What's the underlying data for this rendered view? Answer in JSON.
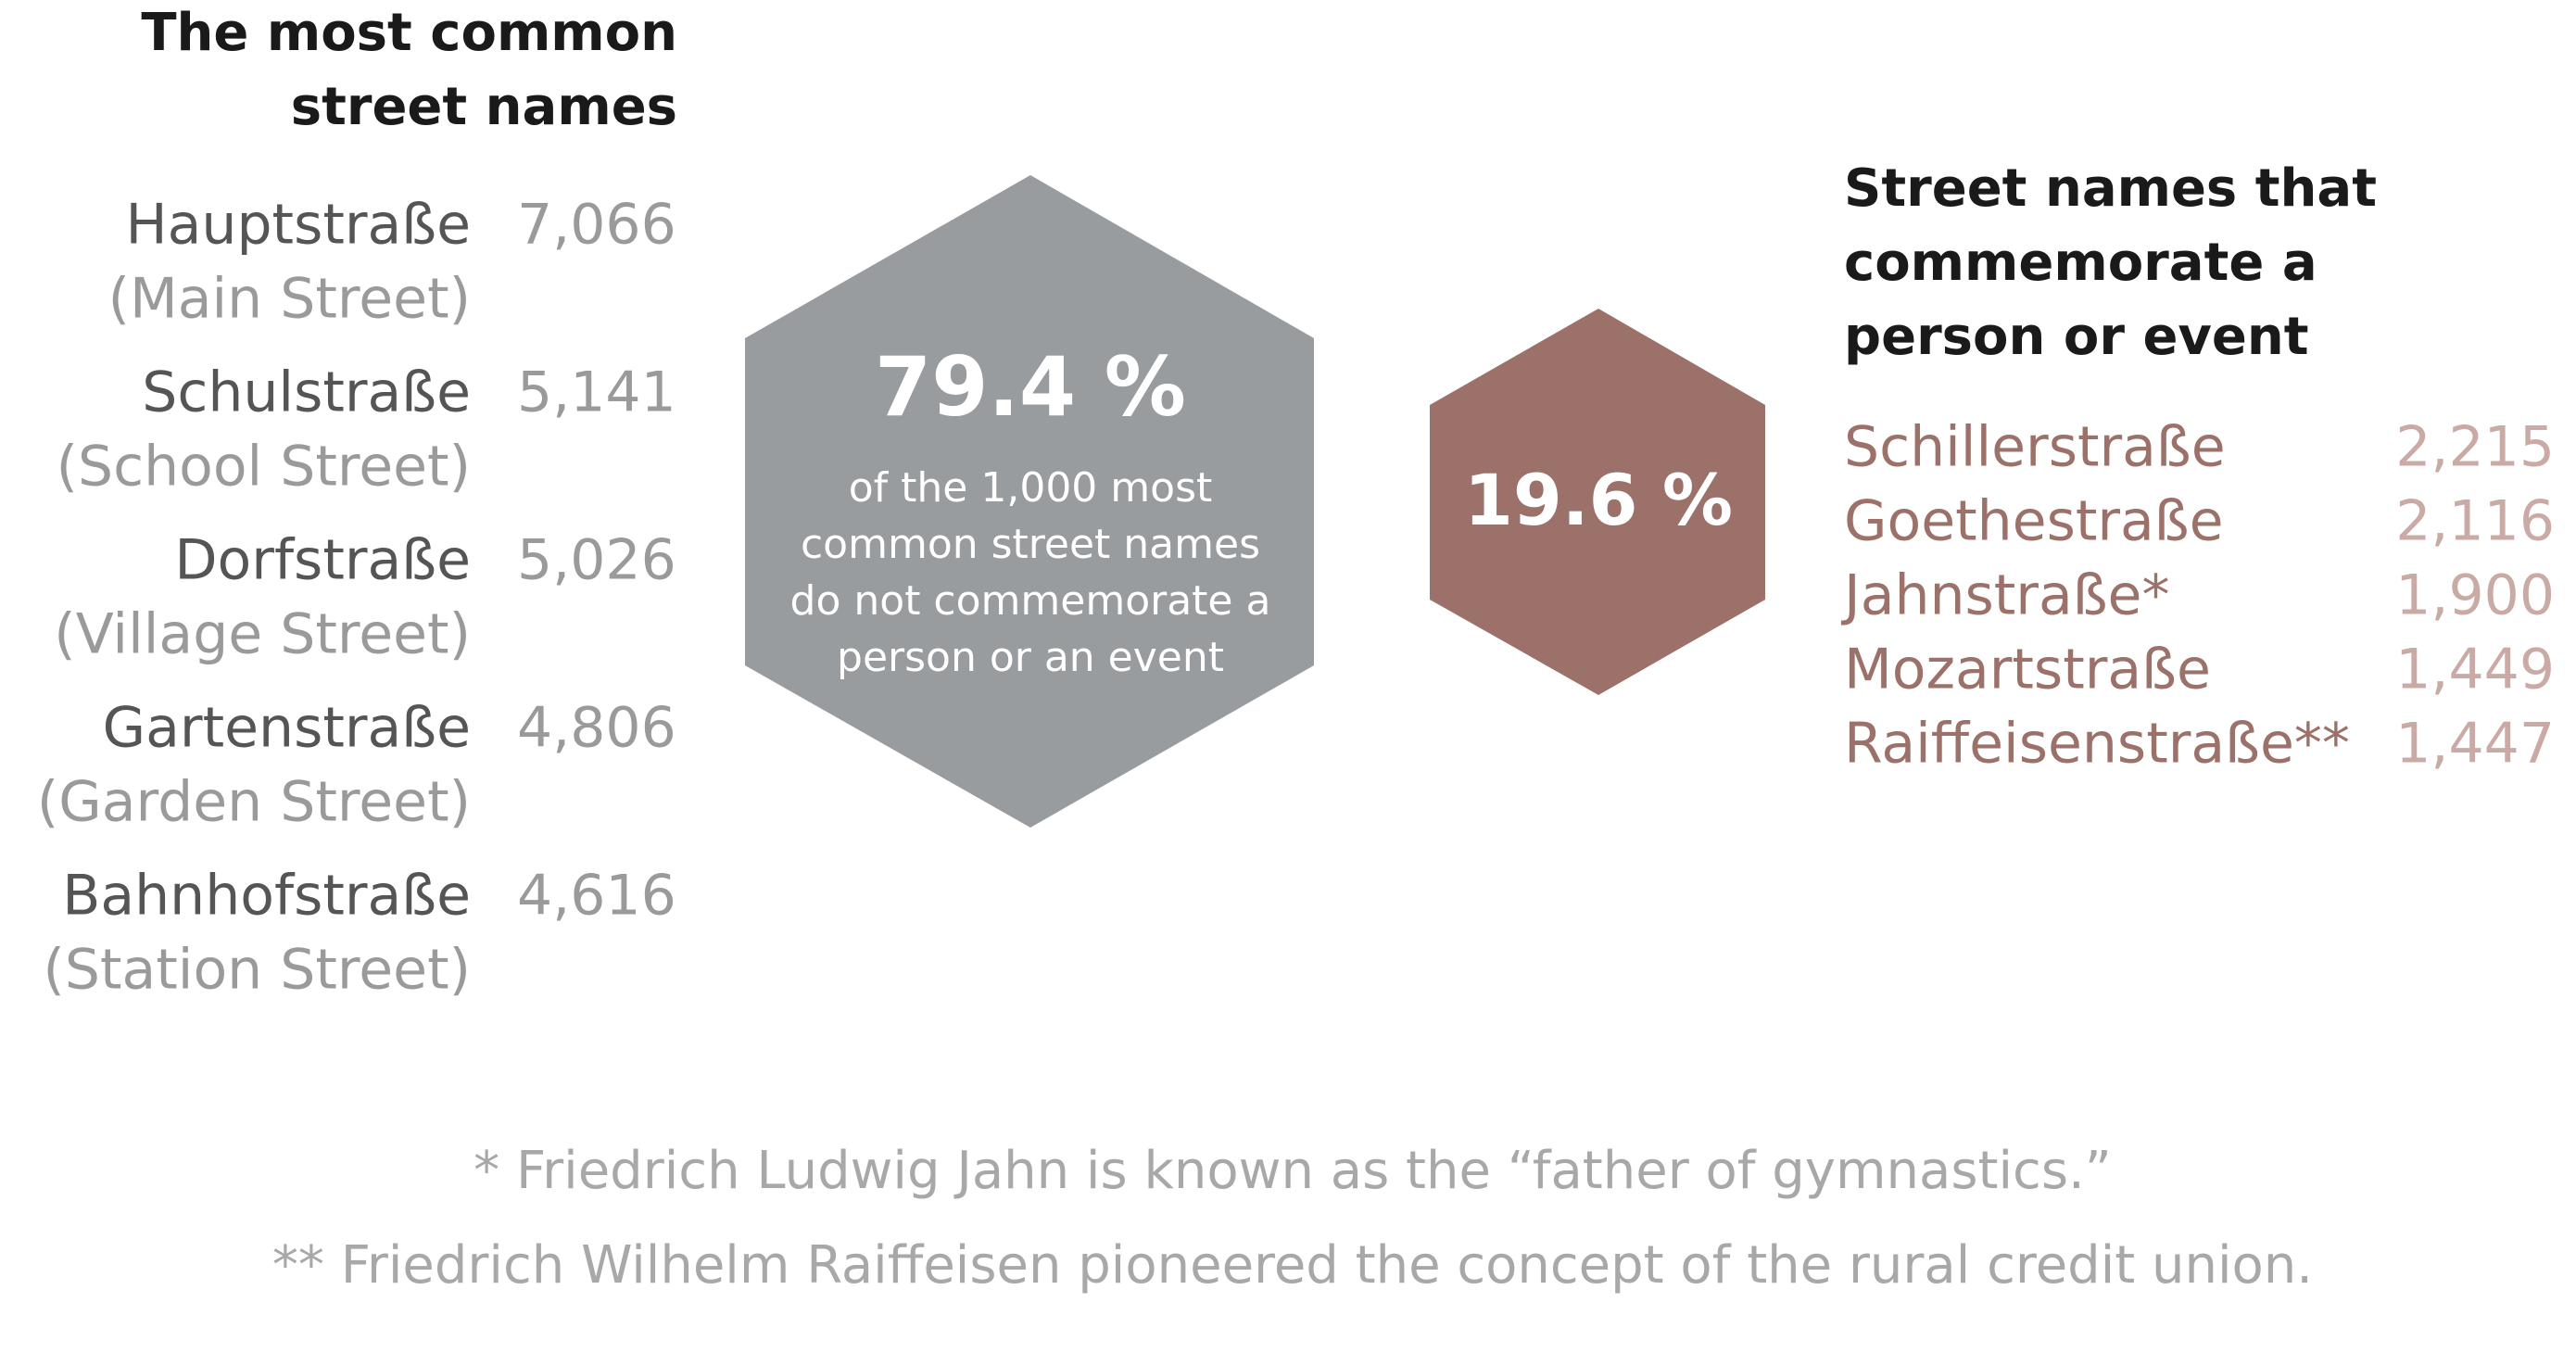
{
  "left": {
    "title": [
      "The most common",
      "street names"
    ],
    "items": [
      {
        "name": "Hauptstraße",
        "translation": "(Main Street)",
        "count": "7,066"
      },
      {
        "name": "Schulstraße",
        "translation": "(School Street)",
        "count": "5,141"
      },
      {
        "name": "Dorfstraße",
        "translation": "(Village Street)",
        "count": "5,026"
      },
      {
        "name": "Gartenstraße",
        "translation": "(Garden Street)",
        "count": "4,806"
      },
      {
        "name": "Bahnhofstraße",
        "translation": "(Station Street)",
        "count": "4,616"
      }
    ]
  },
  "hexagons": [
    {
      "value": "79.4 %",
      "description": [
        "of the 1,000 most",
        "common street names",
        "do not commemorate a",
        "person or an event"
      ]
    },
    {
      "value": "19.6 %"
    }
  ],
  "right": {
    "title": [
      "Street names that",
      "commemorate a",
      "person or event"
    ],
    "items": [
      {
        "name": "Schillerstraße",
        "count": "2,215"
      },
      {
        "name": "Goethestraße",
        "count": "2,116"
      },
      {
        "name": "Jahnstraße*",
        "count": "1,900"
      },
      {
        "name": "Mozartstraße",
        "count": "1,449"
      },
      {
        "name": "Raiffeisenstraße**",
        "count": "1,447"
      }
    ]
  },
  "footnotes": [
    "* Friedrich Ludwig Jahn is known as the “father of gymnastics.”",
    "** Friedrich Wilhelm Raiffeisen pioneered the concept of the rural credit union."
  ]
}
